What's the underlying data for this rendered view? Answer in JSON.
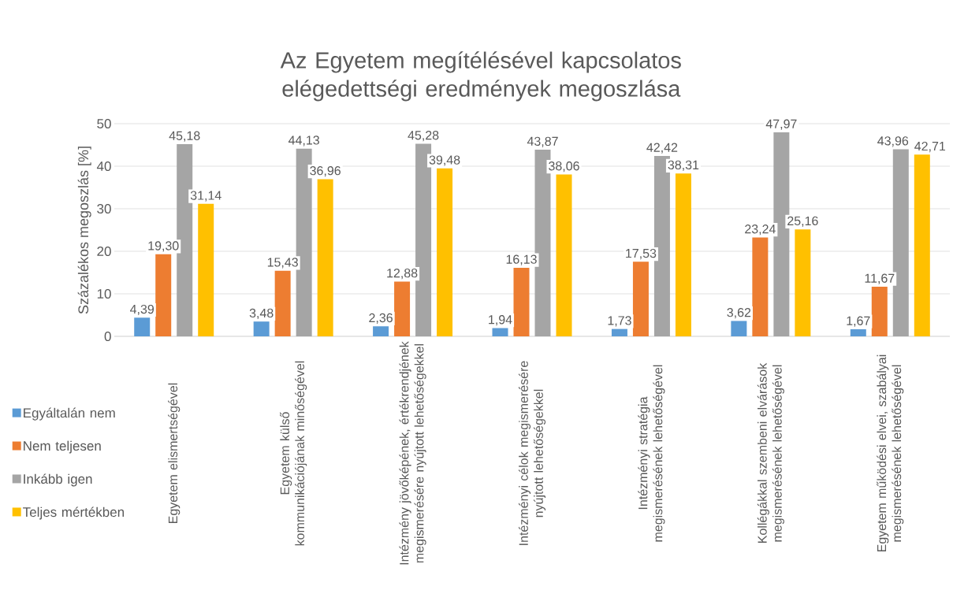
{
  "chart_data": {
    "type": "bar",
    "title": "Az Egyetem megítélésével kapcsolatos elégedettségi eredmények megoszlása",
    "ylabel": "Százalékos megoszlás [%]",
    "categories": [
      "Egyetem elismertségével",
      "Egyetem külső kommunikációjának minőségével",
      "Intézmény jövőképének, értékrendjének megismerésére nyújtott lehetőségekkel",
      "Intézményi célok megismerésére nyújtott lehetőségekkel",
      "Intézményi stratégia megismerésének lehetőségével",
      "Kollégákkal szembeni elvárások megismerésének lehetőségével",
      "Egyetem működési elvei, szabályai megismerésének lehetőségével"
    ],
    "series": [
      {
        "name": "Egyáltalán nem",
        "color": "#5b9bd5",
        "values": [
          4.39,
          3.48,
          2.36,
          1.94,
          1.73,
          3.62,
          1.67
        ],
        "value_labels": [
          "4,39",
          "3,48",
          "2,36",
          "1,94",
          "1,73",
          "3,62",
          "1,67"
        ]
      },
      {
        "name": "Nem teljesen",
        "color": "#ed7d31",
        "values": [
          19.3,
          15.43,
          12.88,
          16.13,
          17.53,
          23.24,
          11.67
        ],
        "value_labels": [
          "19,30",
          "15,43",
          "12,88",
          "16,13",
          "17,53",
          "23,24",
          "11,67"
        ]
      },
      {
        "name": "Inkább igen",
        "color": "#a5a5a5",
        "values": [
          45.18,
          44.13,
          45.28,
          43.87,
          42.42,
          47.97,
          43.96
        ],
        "value_labels": [
          "45,18",
          "44,13",
          "45,28",
          "43,87",
          "42,42",
          "47,97",
          "43,96"
        ]
      },
      {
        "name": "Teljes mértékben",
        "color": "#ffc000",
        "values": [
          31.14,
          36.96,
          39.48,
          38.06,
          38.31,
          25.16,
          42.71
        ],
        "value_labels": [
          "31,14",
          "36,96",
          "39,48",
          "38,06",
          "38,31",
          "25,16",
          "42,71"
        ]
      }
    ],
    "ylim": [
      0,
      50
    ],
    "yticks": [
      0,
      10,
      20,
      30,
      40,
      50
    ],
    "grid": "y",
    "legend": "bottom left"
  }
}
